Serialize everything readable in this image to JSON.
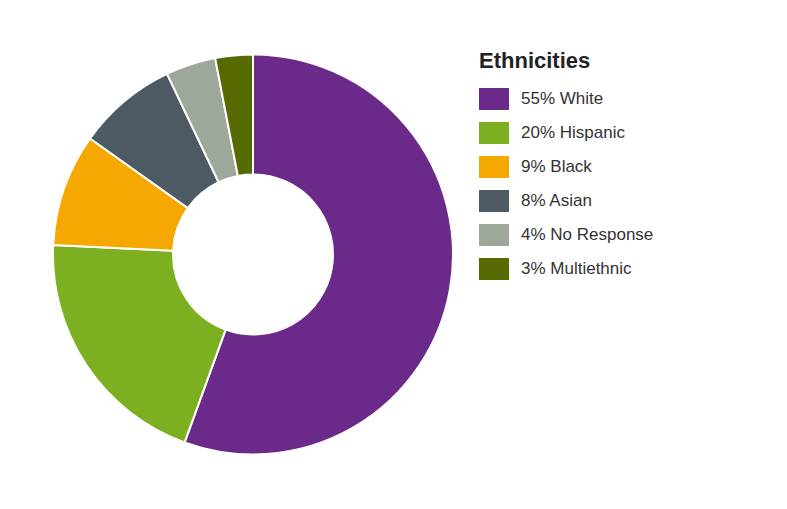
{
  "chart_data": {
    "type": "pie",
    "title": "Ethnicities",
    "categories": [
      "55% White",
      "20% Hispanic",
      "9% Black",
      "8% Asian",
      "4% No Response",
      "3% Multiethnic"
    ],
    "values": [
      55,
      20,
      9,
      8,
      4,
      3
    ],
    "colors": [
      "#6B2A8A",
      "#7DB021",
      "#F5A800",
      "#4D5A63",
      "#9EA89A",
      "#556B00"
    ],
    "legend": "right"
  }
}
